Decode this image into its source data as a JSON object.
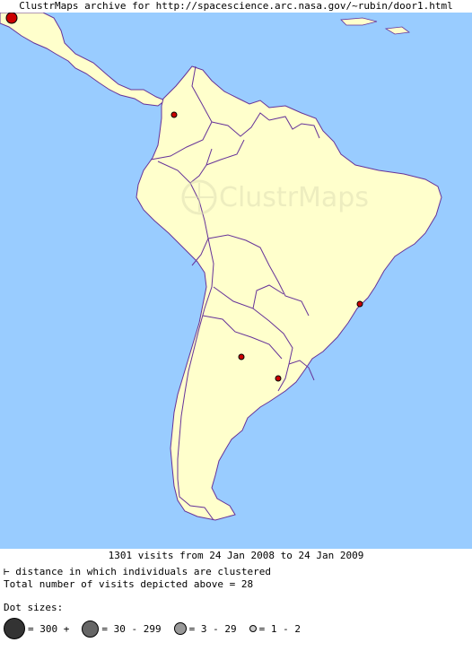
{
  "header": {
    "title": "ClustrMaps archive for http://spacescience.arc.nasa.gov/~rubin/door1.html"
  },
  "map": {
    "watermark": "ClustrMaps",
    "colors": {
      "ocean": "#99ccff",
      "land": "#ffffcc",
      "border": "#663399",
      "dot": "#cc0000"
    }
  },
  "footer": {
    "visits_line": "1301 visits from 24 Jan 2008 to 24 Jan 2009",
    "distance_note": "distance in which individuals are clustered",
    "distance_icon": "⊢",
    "total_line": "Total number of visits depicted above = 28",
    "dot_sizes_label": "Dot sizes:",
    "legend": [
      {
        "label": "= 300 +"
      },
      {
        "label": "= 30 - 299"
      },
      {
        "label": "= 3 - 29"
      },
      {
        "label": "= 1 - 2"
      }
    ]
  }
}
